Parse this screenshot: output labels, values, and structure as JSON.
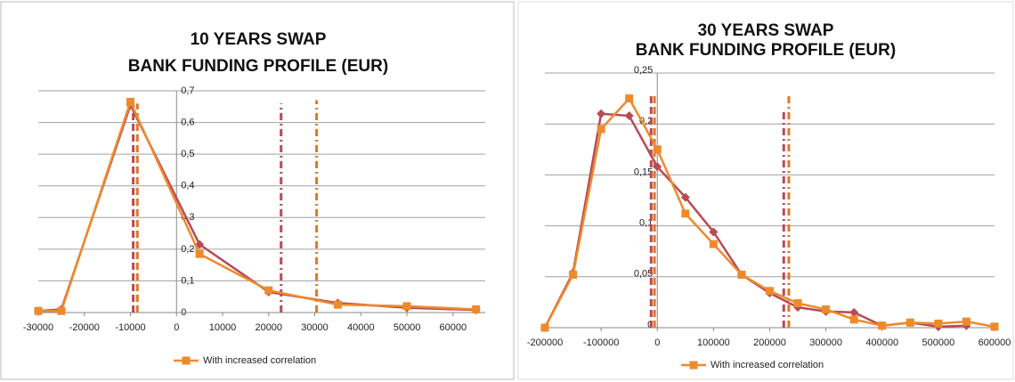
{
  "chart_data": [
    {
      "type": "line",
      "title": [
        "10 YEARS SWAP",
        "BANK FUNDING PROFILE (EUR)"
      ],
      "x": [
        -30000,
        -25000,
        -10000,
        5000,
        20000,
        35000,
        50000,
        65000
      ],
      "series": [
        {
          "name": "With increased correlation",
          "color": "#ee8a2c",
          "marker": "square",
          "values": [
            0.005,
            0.005,
            0.665,
            0.185,
            0.07,
            0.025,
            0.02,
            0.01
          ]
        },
        {
          "color": "#b84a55",
          "marker": "diamond",
          "values": [
            0.005,
            0.01,
            0.655,
            0.215,
            0.065,
            0.03,
            0.015,
            0.008
          ]
        }
      ],
      "reference_lines": [
        {
          "x": -9400,
          "top": 0.66,
          "color": "#b84a55",
          "style": "dashed"
        },
        {
          "x": -8500,
          "top": 0.66,
          "color": "#e07820",
          "style": "dashed"
        },
        {
          "x": 22700,
          "top": 0.66,
          "color": "#b84a55",
          "style": "dashdot"
        },
        {
          "x": 30400,
          "top": 0.67,
          "color": "#e07820",
          "style": "dashdot"
        }
      ],
      "xlim": [
        -30000,
        67000
      ],
      "xticks": [
        -30000,
        -20000,
        -10000,
        0,
        10000,
        20000,
        30000,
        40000,
        50000,
        60000
      ],
      "ylim": [
        0,
        0.7
      ],
      "yticks": [
        0,
        {
          "value": 0.1,
          "label": "0,1"
        },
        {
          "value": 0.2,
          "label": "0,2"
        },
        {
          "value": 0.3,
          "label": "0,3"
        },
        {
          "value": 0.4,
          "label": "0,4"
        },
        {
          "value": 0.5,
          "label": "0,5"
        },
        {
          "value": 0.6,
          "label": "0,6"
        },
        {
          "value": 0.7,
          "label": "0,7"
        }
      ],
      "grid": true,
      "legend": "bottom"
    },
    {
      "type": "line",
      "title": [
        "30 YEARS SWAP",
        "BANK FUNDING PROFILE (EUR)"
      ],
      "x": [
        -200000,
        -150000,
        -100000,
        -50000,
        0,
        50000,
        100000,
        150000,
        200000,
        250000,
        300000,
        350000,
        400000,
        450000,
        500000,
        550000,
        600000
      ],
      "series": [
        {
          "name": "With increased correlation",
          "color": "#ee8a2c",
          "marker": "square",
          "values": [
            0,
            0.052,
            0.195,
            0.225,
            0.175,
            0.112,
            0.082,
            0.052,
            0.036,
            0.024,
            0.018,
            0.008,
            0.002,
            0.005,
            0.004,
            0.006,
            0.001
          ]
        },
        {
          "color": "#b84a55",
          "marker": "diamond",
          "values": [
            0,
            0.054,
            0.21,
            0.208,
            0.158,
            0.128,
            0.094,
            0.052,
            0.034,
            0.02,
            0.016,
            0.015,
            0.002,
            0.005,
            0.001,
            0.002,
            null
          ]
        }
      ],
      "reference_lines": [
        {
          "x": -11000,
          "top": 0.23,
          "color": "#b84a55",
          "style": "dashed"
        },
        {
          "x": -5000,
          "top": 0.23,
          "color": "#e07820",
          "style": "dashed"
        },
        {
          "x": 225000,
          "top": 0.215,
          "color": "#b84a55",
          "style": "dashdot"
        },
        {
          "x": 234000,
          "top": 0.23,
          "color": "#e07820",
          "style": "dashdot"
        }
      ],
      "xlim": [
        -200000,
        600000
      ],
      "xticks": [
        -200000,
        -100000,
        0,
        100000,
        200000,
        300000,
        400000,
        500000,
        600000
      ],
      "ylim": [
        0,
        0.25
      ],
      "yticks": [
        0,
        {
          "value": 0.05,
          "label": "0,05"
        },
        {
          "value": 0.1,
          "label": "0,1"
        },
        {
          "value": 0.15,
          "label": "0,15"
        },
        {
          "value": 0.2,
          "label": "0,2"
        },
        {
          "value": 0.25,
          "label": "0,25"
        }
      ],
      "grid": true,
      "legend": "bottom"
    }
  ]
}
